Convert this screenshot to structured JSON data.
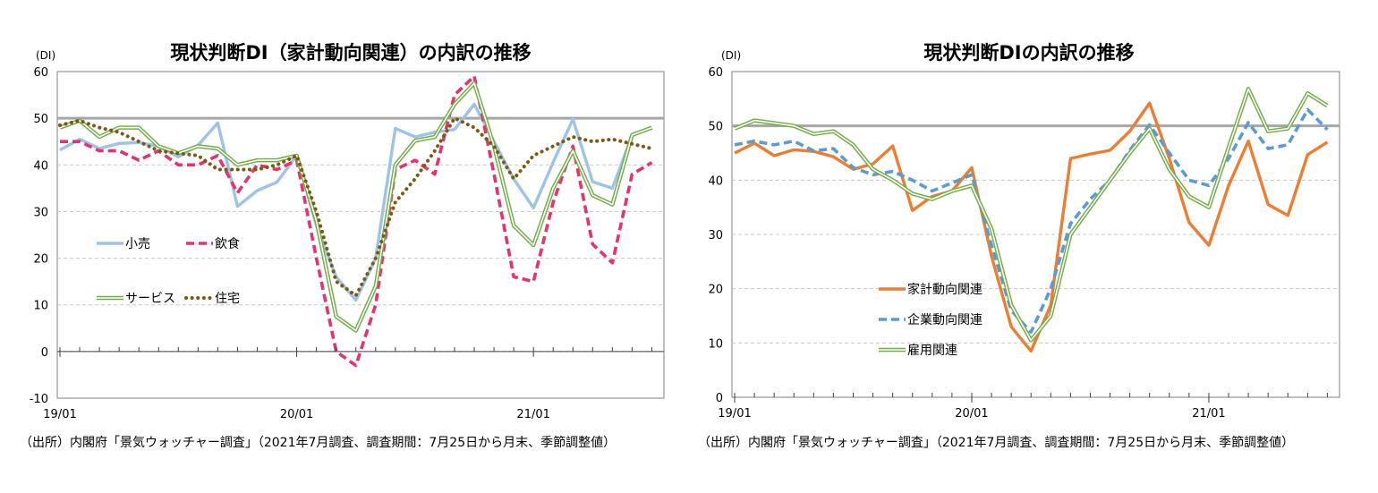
{
  "source_note": "（出所）内閣府「景気ウォッチャー調査」（2021年7月調査、調査期間：7月25日から月末、季節調整値）",
  "chart_data": [
    {
      "type": "line",
      "title": "現状判断DI（家計動向関連）の内訳の推移",
      "unit_label": "(DI)",
      "ylim": [
        -10,
        60
      ],
      "yticks": [
        -10,
        0,
        10,
        20,
        30,
        40,
        50,
        60
      ],
      "x_tick_labels": [
        "19/01",
        "20/01",
        "21/01"
      ],
      "x_tick_label_months": [
        0,
        12,
        24
      ],
      "months": 31,
      "reference_line": 50,
      "grid": true,
      "series": [
        {
          "name": "小売",
          "color": "#9dc3e6",
          "style": "solid",
          "values": [
            43.2,
            45.5,
            43.5,
            44.6,
            44.8,
            44.0,
            41.7,
            44.2,
            49.0,
            31.1,
            34.5,
            36.3,
            42.0,
            27.0,
            16.0,
            11.0,
            20.0,
            47.8,
            46.0,
            47.0,
            47.6,
            53.0,
            45.0,
            37.0,
            30.8,
            40.6,
            49.8,
            36.4,
            35.0,
            46.3,
            48.0
          ]
        },
        {
          "name": "飲食",
          "color": "#e6336f",
          "style": "dashed",
          "values": [
            45.0,
            45.0,
            43.0,
            43.0,
            41.0,
            43.0,
            40.0,
            40.0,
            42.0,
            34.0,
            40.0,
            39.0,
            41.0,
            20.0,
            0.0,
            -3.0,
            10.0,
            39.0,
            41.0,
            38.0,
            55.0,
            59.0,
            38.0,
            16.0,
            15.0,
            32.0,
            44.0,
            23.0,
            19.0,
            38.0,
            40.5
          ]
        },
        {
          "name": "サービス",
          "color": "#70ad47",
          "style": "double",
          "values": [
            48.0,
            49.5,
            46.0,
            48.0,
            48.0,
            44.0,
            42.5,
            44.0,
            43.5,
            40.0,
            41.0,
            41.0,
            42.0,
            28.0,
            7.5,
            4.5,
            14.0,
            40.0,
            45.2,
            46.0,
            53.0,
            57.5,
            44.0,
            27.0,
            22.8,
            35.0,
            43.0,
            33.5,
            31.5,
            46.4,
            48.0
          ]
        },
        {
          "name": "住宅",
          "color": "#7a5a12",
          "style": "dotted",
          "values": [
            48.5,
            49.5,
            48.0,
            47.0,
            45.0,
            43.0,
            42.5,
            42.0,
            39.0,
            39.0,
            39.0,
            40.0,
            42.0,
            30.0,
            15.0,
            12.0,
            20.0,
            32.0,
            37.0,
            43.0,
            50.0,
            48.0,
            44.0,
            37.0,
            42.0,
            44.0,
            46.0,
            45.0,
            45.5,
            44.5,
            43.5
          ]
        }
      ],
      "legend": [
        {
          "name": "小売",
          "series": 0
        },
        {
          "name": "飲食",
          "series": 1
        },
        {
          "name": "サービス",
          "series": 2
        },
        {
          "name": "住宅",
          "series": 3
        }
      ]
    },
    {
      "type": "line",
      "title": "現状判断DIの内訳の推移",
      "unit_label": "(DI)",
      "ylim": [
        0,
        60
      ],
      "yticks": [
        0,
        10,
        20,
        30,
        40,
        50,
        60
      ],
      "x_tick_labels": [
        "19/01",
        "20/01",
        "21/01"
      ],
      "x_tick_label_months": [
        0,
        12,
        24
      ],
      "months": 31,
      "reference_line": 50,
      "grid": true,
      "series": [
        {
          "name": "家計動向関連",
          "color": "#ed7d31",
          "style": "solid",
          "values": [
            45.0,
            46.8,
            44.5,
            45.6,
            45.3,
            44.3,
            42.0,
            43.0,
            46.3,
            34.4,
            37.0,
            38.0,
            42.3,
            26.0,
            13.0,
            8.5,
            17.0,
            44.0,
            44.8,
            45.5,
            49.0,
            54.2,
            44.0,
            32.2,
            28.0,
            39.0,
            47.2,
            35.5,
            33.5,
            44.7,
            47.0
          ]
        },
        {
          "name": "企業動向関連",
          "color": "#5b9bd5",
          "style": "dashed",
          "values": [
            46.5,
            47.2,
            46.5,
            47.2,
            45.4,
            45.8,
            42.3,
            41.0,
            41.6,
            40.0,
            38.0,
            39.5,
            41.0,
            28.0,
            16.0,
            12.0,
            20.0,
            32.0,
            36.5,
            40.0,
            45.5,
            50.2,
            45.0,
            40.0,
            39.0,
            44.0,
            50.6,
            45.8,
            46.5,
            53.0,
            49.3
          ]
        },
        {
          "name": "雇用関連",
          "color": "#70ad47",
          "style": "double",
          "values": [
            49.5,
            51.0,
            50.5,
            50.0,
            48.5,
            49.0,
            46.5,
            42.0,
            40.0,
            37.5,
            36.5,
            38.0,
            39.0,
            31.0,
            17.0,
            10.5,
            15.0,
            30.0,
            35.0,
            40.0,
            45.0,
            49.5,
            42.0,
            37.0,
            35.0,
            46.0,
            56.8,
            49.0,
            49.5,
            56.0,
            53.7
          ]
        }
      ],
      "legend": [
        {
          "name": "家計動向関連",
          "series": 0
        },
        {
          "name": "企業動向関連",
          "series": 1
        },
        {
          "name": "雇用関連",
          "series": 2
        }
      ]
    }
  ]
}
